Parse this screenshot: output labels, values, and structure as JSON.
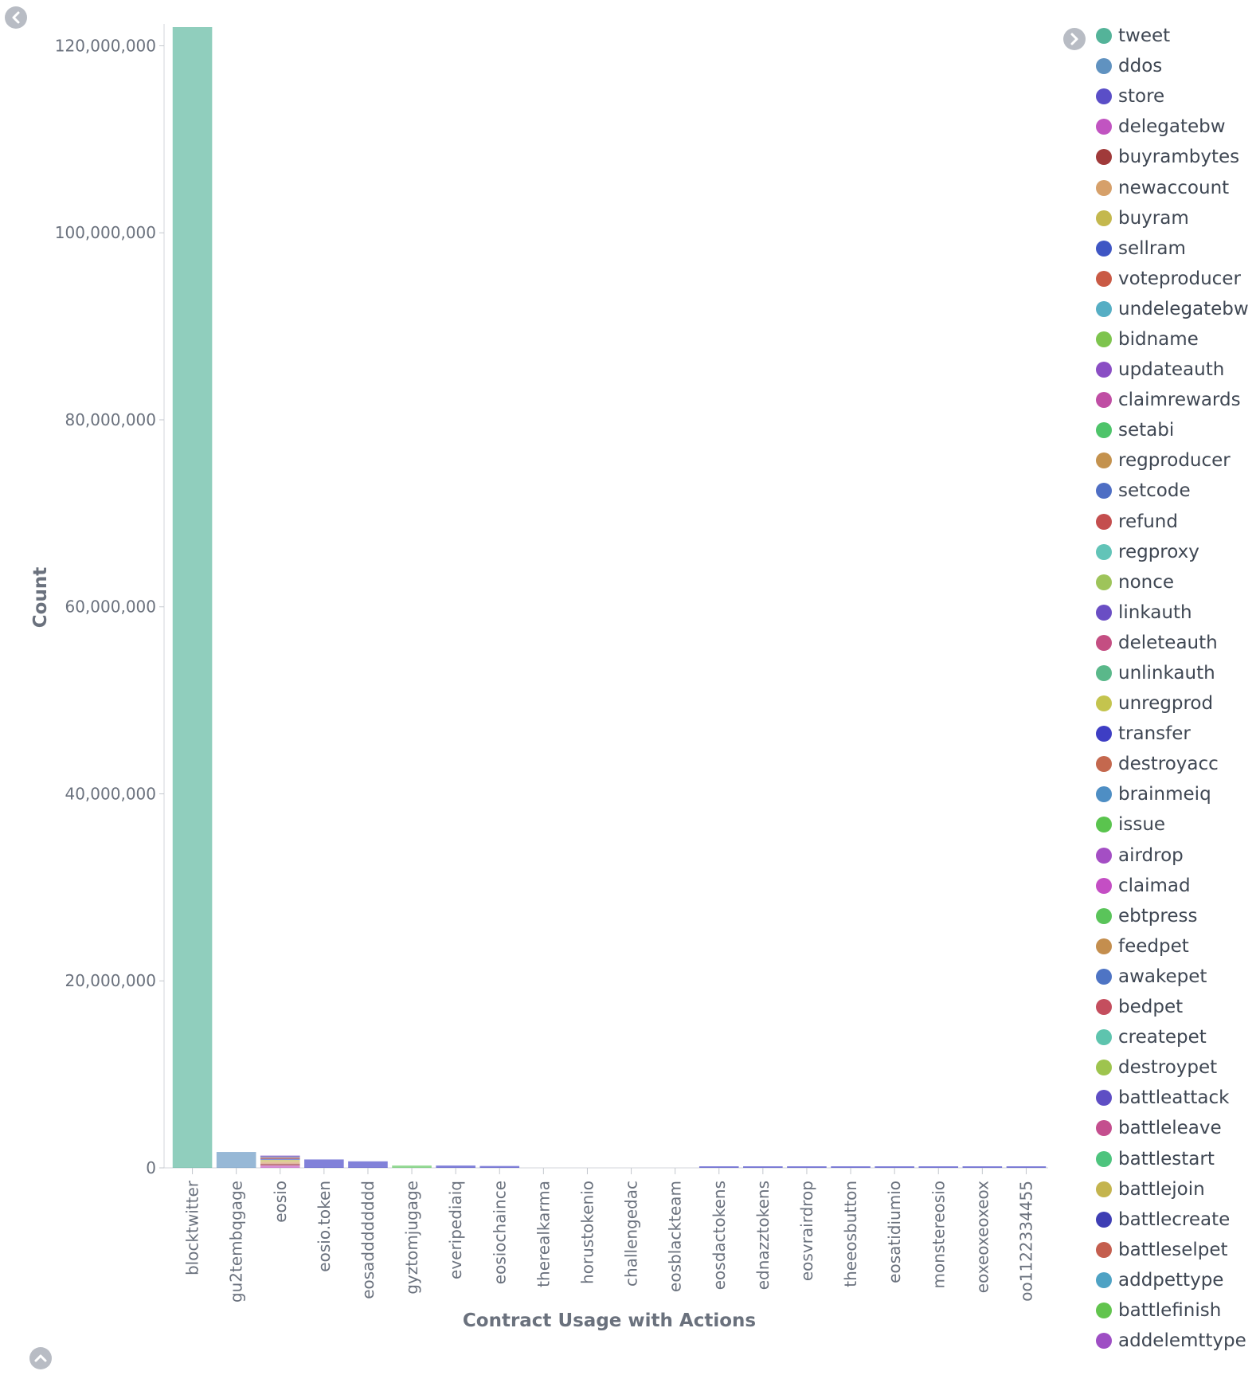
{
  "chart_data": {
    "type": "bar",
    "stacked": true,
    "xlabel": "Contract Usage with Actions",
    "ylabel": "Count",
    "ylim": [
      0,
      122000000
    ],
    "yticks": [
      0,
      20000000,
      40000000,
      60000000,
      80000000,
      100000000,
      120000000
    ],
    "ytick_labels": [
      "0",
      "20,000,000",
      "40,000,000",
      "60,000,000",
      "80,000,000",
      "100,000,000",
      "120,000,000"
    ],
    "categories": [
      "blocktwitter",
      "gu2tembqgage",
      "eosio",
      "eosio.token",
      "eosadddddddd",
      "gyztomjugage",
      "everipediaiq",
      "eosiochaince",
      "therealkarma",
      "horustokenio",
      "challengedac",
      "eosblackteam",
      "eosdactokens",
      "ednazztokens",
      "eosvrairdrop",
      "theeosbutton",
      "eosatidiumio",
      "monstereosio",
      "eoxeoxeoxeox",
      "oo1122334455"
    ],
    "legend_position": "right",
    "grid": false,
    "series": [
      {
        "name": "tweet",
        "color": "#54b399",
        "values": [
          122000000,
          0,
          0,
          0,
          0,
          0,
          0,
          0,
          0,
          0,
          0,
          0,
          0,
          0,
          0,
          0,
          0,
          0,
          0,
          0
        ]
      },
      {
        "name": "ddos",
        "color": "#6092c0",
        "values": [
          0,
          1700000,
          0,
          0,
          0,
          0,
          0,
          0,
          0,
          0,
          0,
          0,
          0,
          0,
          0,
          0,
          0,
          0,
          0,
          0
        ]
      },
      {
        "name": "store",
        "color": "#5a4ec7",
        "values": [
          0,
          0,
          0,
          0,
          0,
          0,
          0,
          0,
          0,
          0,
          0,
          0,
          0,
          0,
          0,
          0,
          0,
          0,
          0,
          0
        ]
      },
      {
        "name": "delegatebw",
        "color": "#c154c1",
        "values": [
          0,
          0,
          250000,
          0,
          0,
          0,
          0,
          0,
          0,
          0,
          0,
          0,
          0,
          0,
          0,
          0,
          0,
          0,
          0,
          0
        ]
      },
      {
        "name": "buyrambytes",
        "color": "#a03a3a",
        "values": [
          0,
          0,
          200000,
          0,
          0,
          0,
          0,
          0,
          0,
          0,
          0,
          0,
          0,
          0,
          0,
          0,
          0,
          0,
          0,
          0
        ]
      },
      {
        "name": "newaccount",
        "color": "#d6a06a",
        "values": [
          0,
          0,
          200000,
          0,
          0,
          0,
          0,
          0,
          0,
          0,
          0,
          0,
          0,
          0,
          0,
          0,
          0,
          0,
          0,
          0
        ]
      },
      {
        "name": "buyram",
        "color": "#c4b84e",
        "values": [
          0,
          0,
          200000,
          0,
          0,
          0,
          0,
          0,
          0,
          0,
          0,
          0,
          0,
          0,
          0,
          0,
          0,
          0,
          0,
          0
        ]
      },
      {
        "name": "sellram",
        "color": "#3f56c4",
        "values": [
          0,
          0,
          100000,
          0,
          0,
          0,
          0,
          0,
          0,
          0,
          0,
          0,
          0,
          0,
          0,
          0,
          0,
          0,
          0,
          0
        ]
      },
      {
        "name": "voteproducer",
        "color": "#c95a45",
        "values": [
          0,
          0,
          150000,
          0,
          0,
          0,
          0,
          0,
          0,
          0,
          0,
          0,
          0,
          0,
          0,
          0,
          0,
          0,
          0,
          0
        ]
      },
      {
        "name": "undelegatebw",
        "color": "#56aec4",
        "values": [
          0,
          0,
          50000,
          0,
          0,
          0,
          0,
          0,
          0,
          0,
          0,
          0,
          0,
          0,
          0,
          0,
          0,
          0,
          0,
          0
        ]
      },
      {
        "name": "bidname",
        "color": "#7ec44e",
        "values": [
          0,
          0,
          0,
          0,
          0,
          0,
          0,
          0,
          0,
          0,
          0,
          0,
          0,
          0,
          0,
          0,
          0,
          0,
          0,
          0
        ]
      },
      {
        "name": "updateauth",
        "color": "#8a4ec4",
        "values": [
          0,
          0,
          100000,
          0,
          0,
          0,
          0,
          0,
          0,
          0,
          0,
          0,
          0,
          0,
          0,
          0,
          0,
          0,
          0,
          0
        ]
      },
      {
        "name": "claimrewards",
        "color": "#c04ea4",
        "values": [
          0,
          0,
          0,
          0,
          0,
          0,
          0,
          0,
          0,
          0,
          0,
          0,
          0,
          0,
          0,
          0,
          0,
          0,
          0,
          0
        ]
      },
      {
        "name": "setabi",
        "color": "#4ec46a",
        "values": [
          0,
          0,
          0,
          0,
          0,
          0,
          0,
          0,
          0,
          0,
          0,
          0,
          0,
          0,
          0,
          0,
          0,
          0,
          0,
          0
        ]
      },
      {
        "name": "regproducer",
        "color": "#c4924e",
        "values": [
          0,
          0,
          0,
          0,
          0,
          0,
          0,
          0,
          0,
          0,
          0,
          0,
          0,
          0,
          0,
          0,
          0,
          0,
          0,
          0
        ]
      },
      {
        "name": "setcode",
        "color": "#4e6ec4",
        "values": [
          0,
          0,
          0,
          0,
          0,
          0,
          0,
          0,
          0,
          0,
          0,
          0,
          0,
          0,
          0,
          0,
          0,
          0,
          0,
          0
        ]
      },
      {
        "name": "refund",
        "color": "#c44e4e",
        "values": [
          0,
          0,
          0,
          0,
          0,
          0,
          0,
          0,
          0,
          0,
          0,
          0,
          0,
          0,
          0,
          0,
          0,
          0,
          0,
          0
        ]
      },
      {
        "name": "regproxy",
        "color": "#62c4b8",
        "values": [
          0,
          0,
          0,
          0,
          0,
          0,
          0,
          0,
          0,
          0,
          0,
          0,
          0,
          0,
          0,
          0,
          0,
          0,
          0,
          0
        ]
      },
      {
        "name": "nonce",
        "color": "#9ec45a",
        "values": [
          0,
          0,
          0,
          0,
          0,
          0,
          0,
          0,
          0,
          0,
          0,
          0,
          0,
          0,
          0,
          0,
          0,
          0,
          0,
          0
        ]
      },
      {
        "name": "linkauth",
        "color": "#6a4ec4",
        "values": [
          0,
          0,
          0,
          0,
          0,
          0,
          0,
          0,
          0,
          0,
          0,
          0,
          0,
          0,
          0,
          0,
          0,
          0,
          0,
          0
        ]
      },
      {
        "name": "deleteauth",
        "color": "#c44e82",
        "values": [
          0,
          0,
          0,
          0,
          0,
          0,
          0,
          0,
          0,
          0,
          0,
          0,
          0,
          0,
          0,
          0,
          0,
          0,
          0,
          0
        ]
      },
      {
        "name": "unlinkauth",
        "color": "#5ab88a",
        "values": [
          0,
          0,
          0,
          0,
          0,
          0,
          0,
          0,
          0,
          0,
          0,
          0,
          0,
          0,
          0,
          0,
          0,
          0,
          0,
          0
        ]
      },
      {
        "name": "unregprod",
        "color": "#c4c44e",
        "values": [
          0,
          0,
          0,
          0,
          0,
          0,
          0,
          0,
          0,
          0,
          0,
          0,
          0,
          0,
          0,
          0,
          0,
          0,
          0,
          0
        ]
      },
      {
        "name": "transfer",
        "color": "#3e3ec4",
        "values": [
          0,
          0,
          0,
          900000,
          700000,
          0,
          250000,
          200000,
          0,
          0,
          0,
          0,
          30000,
          30000,
          30000,
          30000,
          30000,
          30000,
          30000,
          30000
        ]
      },
      {
        "name": "destroyacc",
        "color": "#c4684e",
        "values": [
          0,
          0,
          0,
          0,
          0,
          0,
          0,
          0,
          0,
          0,
          0,
          0,
          0,
          0,
          0,
          0,
          0,
          0,
          0,
          0
        ]
      },
      {
        "name": "brainmeiq",
        "color": "#4e8ec4",
        "values": [
          0,
          0,
          0,
          0,
          0,
          0,
          0,
          0,
          0,
          0,
          0,
          0,
          0,
          0,
          0,
          0,
          0,
          0,
          0,
          0
        ]
      },
      {
        "name": "issue",
        "color": "#5ac44e",
        "values": [
          0,
          0,
          0,
          0,
          0,
          0,
          0,
          0,
          0,
          0,
          0,
          0,
          0,
          0,
          0,
          0,
          0,
          0,
          0,
          0
        ]
      },
      {
        "name": "airdrop",
        "color": "#a44ec4",
        "values": [
          0,
          0,
          0,
          0,
          0,
          0,
          0,
          0,
          0,
          0,
          0,
          0,
          0,
          0,
          0,
          0,
          0,
          0,
          0,
          0
        ]
      },
      {
        "name": "claimad",
        "color": "#c44ec4",
        "values": [
          0,
          0,
          0,
          0,
          0,
          0,
          0,
          0,
          0,
          0,
          0,
          0,
          0,
          0,
          0,
          0,
          0,
          0,
          0,
          0
        ]
      },
      {
        "name": "ebtpress",
        "color": "#5ac45a",
        "values": [
          0,
          0,
          0,
          0,
          0,
          250000,
          0,
          0,
          0,
          0,
          0,
          0,
          0,
          0,
          0,
          0,
          0,
          0,
          0,
          0
        ]
      },
      {
        "name": "feedpet",
        "color": "#c48e4e",
        "values": [
          0,
          0,
          0,
          0,
          0,
          0,
          0,
          0,
          0,
          0,
          0,
          0,
          0,
          0,
          0,
          0,
          0,
          0,
          0,
          0
        ]
      },
      {
        "name": "awakepet",
        "color": "#4e74c4",
        "values": [
          0,
          0,
          0,
          0,
          0,
          0,
          0,
          0,
          0,
          0,
          0,
          0,
          0,
          0,
          0,
          0,
          0,
          0,
          0,
          0
        ]
      },
      {
        "name": "bedpet",
        "color": "#c44e5e",
        "values": [
          0,
          0,
          0,
          0,
          0,
          0,
          0,
          0,
          0,
          0,
          0,
          0,
          0,
          0,
          0,
          0,
          0,
          0,
          0,
          0
        ]
      },
      {
        "name": "createpet",
        "color": "#5ec4ae",
        "values": [
          0,
          0,
          0,
          0,
          0,
          0,
          0,
          0,
          0,
          0,
          0,
          0,
          0,
          0,
          0,
          0,
          0,
          0,
          0,
          0
        ]
      },
      {
        "name": "destroypet",
        "color": "#9ec44e",
        "values": [
          0,
          0,
          0,
          0,
          0,
          0,
          0,
          0,
          0,
          0,
          0,
          0,
          0,
          0,
          0,
          0,
          0,
          0,
          0,
          0
        ]
      },
      {
        "name": "battleattack",
        "color": "#5e4ec4",
        "values": [
          0,
          0,
          0,
          0,
          0,
          0,
          0,
          0,
          0,
          0,
          0,
          0,
          0,
          0,
          0,
          0,
          0,
          0,
          0,
          0
        ]
      },
      {
        "name": "battleleave",
        "color": "#c44e8e",
        "values": [
          0,
          0,
          0,
          0,
          0,
          0,
          0,
          0,
          0,
          0,
          0,
          0,
          0,
          0,
          0,
          0,
          0,
          0,
          0,
          0
        ]
      },
      {
        "name": "battlestart",
        "color": "#4ec47e",
        "values": [
          0,
          0,
          0,
          0,
          0,
          0,
          0,
          0,
          0,
          0,
          0,
          0,
          0,
          0,
          0,
          0,
          0,
          0,
          0,
          0
        ]
      },
      {
        "name": "battlejoin",
        "color": "#c4b44e",
        "values": [
          0,
          0,
          0,
          0,
          0,
          0,
          0,
          0,
          0,
          0,
          0,
          0,
          0,
          0,
          0,
          0,
          0,
          0,
          0,
          0
        ]
      },
      {
        "name": "battlecreate",
        "color": "#3e3eb4",
        "values": [
          0,
          0,
          0,
          0,
          0,
          0,
          0,
          0,
          0,
          0,
          0,
          0,
          0,
          0,
          0,
          0,
          0,
          0,
          0,
          0
        ]
      },
      {
        "name": "battleselpet",
        "color": "#c45e4e",
        "values": [
          0,
          0,
          0,
          0,
          0,
          0,
          0,
          0,
          0,
          0,
          0,
          0,
          0,
          0,
          0,
          0,
          0,
          0,
          0,
          0
        ]
      },
      {
        "name": "addpettype",
        "color": "#4ea2c4",
        "values": [
          0,
          0,
          0,
          0,
          0,
          0,
          0,
          0,
          0,
          0,
          0,
          0,
          0,
          0,
          0,
          0,
          0,
          0,
          0,
          0
        ]
      },
      {
        "name": "battlefinish",
        "color": "#62c44e",
        "values": [
          0,
          0,
          0,
          0,
          0,
          0,
          0,
          0,
          0,
          0,
          0,
          0,
          0,
          0,
          0,
          0,
          0,
          0,
          0,
          0
        ]
      },
      {
        "name": "addelemttype",
        "color": "#9e4ec4",
        "values": [
          0,
          0,
          0,
          0,
          0,
          0,
          0,
          0,
          0,
          0,
          0,
          0,
          0,
          0,
          0,
          0,
          0,
          0,
          0,
          0
        ]
      }
    ]
  },
  "controls": {
    "collapse_icon": "chevron-left-icon",
    "legend_toggle_icon": "chevron-right-icon",
    "expand_icon": "chevron-up-icon"
  }
}
